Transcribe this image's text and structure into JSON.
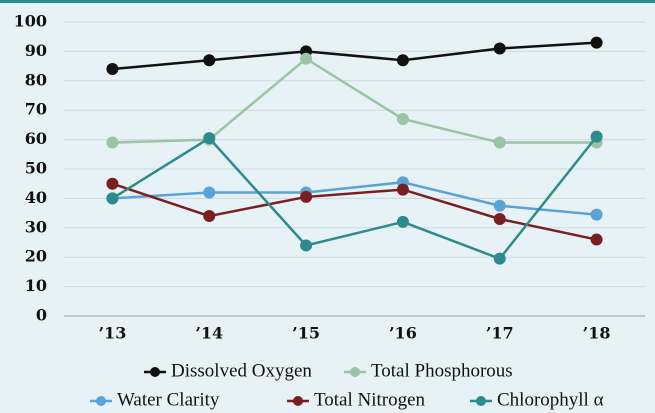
{
  "chart_data": {
    "type": "line",
    "categories": [
      "’13",
      "’14",
      "’15",
      "’16",
      "’17",
      "’18"
    ],
    "series": [
      {
        "name": "Dissolved Oxygen",
        "color": "#111111",
        "values": [
          84,
          87,
          90,
          87,
          91,
          93
        ]
      },
      {
        "name": "Total Phosphorous",
        "color": "#9dc3a6",
        "values": [
          59,
          60,
          87.5,
          67,
          59,
          59
        ]
      },
      {
        "name": "Water Clarity",
        "color": "#5ba3d6",
        "values": [
          40,
          42,
          42,
          45.5,
          37.5,
          34.5
        ]
      },
      {
        "name": "Total Nitrogen",
        "color": "#7a1f1f",
        "values": [
          45,
          34,
          40.5,
          43,
          33,
          26
        ]
      },
      {
        "name": "Chlorophyll α",
        "color": "#2e8b8b",
        "values": [
          40,
          60.5,
          24,
          32,
          19.5,
          61
        ]
      }
    ],
    "ylim": [
      0,
      100
    ],
    "yticks": [
      0,
      10,
      20,
      30,
      40,
      50,
      60,
      70,
      80,
      90,
      100
    ],
    "grid": true
  }
}
